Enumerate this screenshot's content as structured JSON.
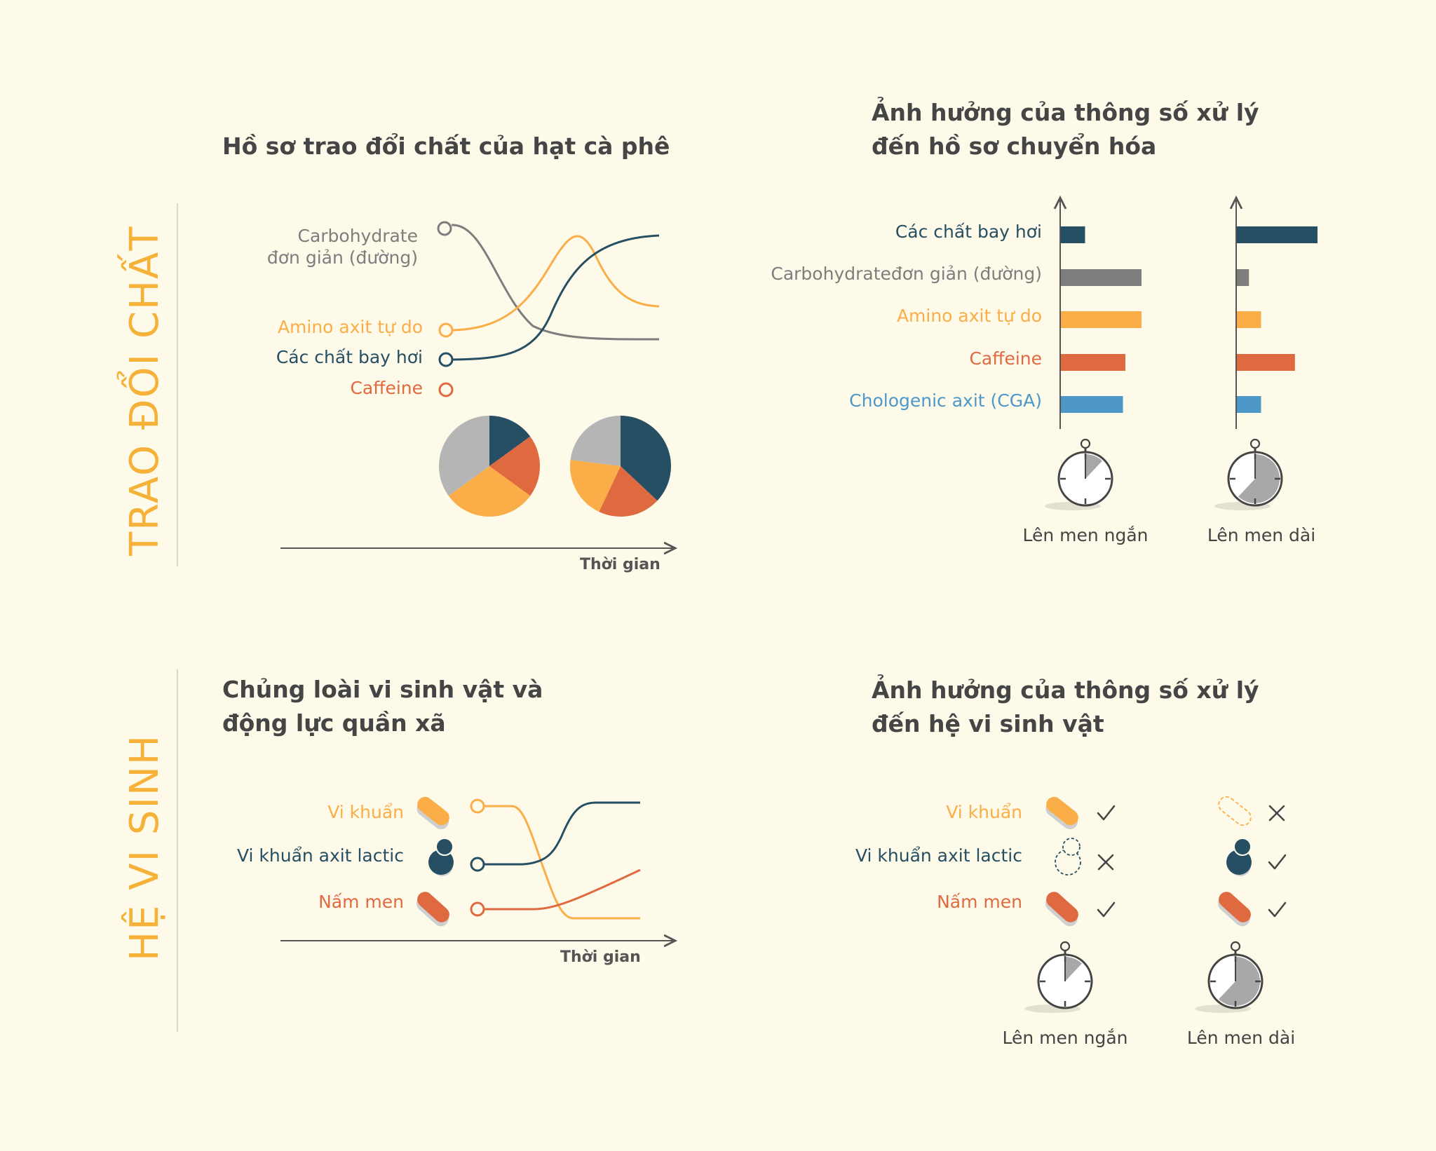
{
  "colors": {
    "background": "#fdfaea",
    "dark_teal": "#264f63",
    "gray": "#8a8a8a",
    "light_gray": "#b5b5b5",
    "orange": "#fbae48",
    "red_orange": "#e06a40",
    "blue": "#4d98c9",
    "side_label": "#f6b138",
    "title": "#454545"
  },
  "side_labels": {
    "metabolism": "TRAO ĐỔI CHẤT",
    "microbiome": "HỆ VI SINH"
  },
  "panel_metabolic_profile": {
    "title": "Hồ sơ trao đổi chất của hạt cà phê",
    "xaxis": "Thời gian",
    "legend": [
      {
        "label_line1": "Carbohydrate",
        "label_line2": "đơn giản (đường)",
        "color": "#7d7d7d"
      },
      {
        "label": "Amino axit tự do",
        "color": "#fbae48"
      },
      {
        "label": "Các chất bay hơi",
        "color": "#264f63"
      },
      {
        "label": "Caffeine",
        "color": "#e06a40"
      }
    ],
    "pies": [
      {
        "name": "early",
        "slices": [
          {
            "series": "Các chất bay hơi",
            "value": 15,
            "color": "#264f63"
          },
          {
            "series": "Caffeine",
            "value": 20,
            "color": "#e06a40"
          },
          {
            "series": "Amino axit tự do",
            "value": 30,
            "color": "#fbae48"
          },
          {
            "series": "Carbohydrate đơn giản (đường)",
            "value": 35,
            "color": "#b5b5b5"
          }
        ]
      },
      {
        "name": "late",
        "slices": [
          {
            "series": "Các chất bay hơi",
            "value": 37,
            "color": "#264f63"
          },
          {
            "series": "Caffeine",
            "value": 20,
            "color": "#e06a40"
          },
          {
            "series": "Amino axit tự do",
            "value": 20,
            "color": "#fbae48"
          },
          {
            "series": "Carbohydrate đơn giản (đường)",
            "value": 23,
            "color": "#b5b5b5"
          }
        ]
      }
    ]
  },
  "panel_processing_metabolic": {
    "title_line1": "Ảnh hưởng của thông số xử lý",
    "title_line2": "đến hồ sơ chuyển hóa",
    "categories": [
      {
        "label": "Các chất bay hơi",
        "color": "#264f63",
        "short": 3,
        "long": 10
      },
      {
        "label": "Carbohydrateđơn giản (đường)",
        "color": "#7d7d7d",
        "short": 10,
        "long": 1.5
      },
      {
        "label": "Amino axit tự do",
        "color": "#fbae48",
        "short": 10,
        "long": 3
      },
      {
        "label": "Caffeine",
        "color": "#e06a40",
        "short": 8,
        "long": 7.2
      },
      {
        "label": "Chologenic axit (CGA)",
        "color": "#4d98c9",
        "short": 7.7,
        "long": 3
      }
    ],
    "timer_short_label": "Lên men ngắn",
    "timer_long_label": "Lên men dài",
    "timer_short_fraction": 0.12,
    "timer_long_fraction": 0.62
  },
  "panel_microbial_dynamics": {
    "title_line1": "Chủng loài vi sinh vật và",
    "title_line2": "động lực quần xã",
    "xaxis": "Thời gian",
    "legend": [
      {
        "label": "Vi khuẩn",
        "color": "#fbae48",
        "icon": "rod-bacteria-icon"
      },
      {
        "label": "Vi khuẩn axit lactic",
        "color": "#264f63",
        "icon": "cocci-icon"
      },
      {
        "label": "Nấm men",
        "color": "#e06a40",
        "icon": "yeast-icon"
      }
    ]
  },
  "panel_processing_microbiome": {
    "title_line1": "Ảnh hưởng của thông số xử lý",
    "title_line2": "đến hệ vi sinh vật",
    "rows": [
      {
        "label": "Vi khuẩn",
        "color": "#fbae48",
        "short_present": true,
        "long_present": false
      },
      {
        "label": "Vi khuẩn axit lactic",
        "color": "#264f63",
        "short_present": false,
        "long_present": true
      },
      {
        "label": "Nấm men",
        "color": "#e06a40",
        "short_present": true,
        "long_present": true
      }
    ],
    "timer_short_label": "Lên men ngắn",
    "timer_long_label": "Lên men dài",
    "timer_short_fraction": 0.12,
    "timer_long_fraction": 0.62
  }
}
